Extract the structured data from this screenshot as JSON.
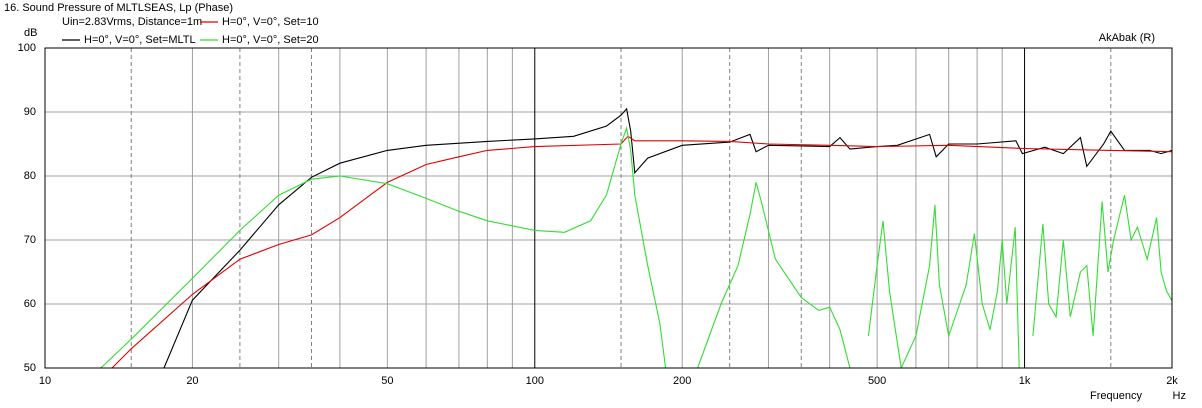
{
  "chart_data": {
    "type": "line",
    "title": "16. Sound Pressure of MLTLSEAS, Lp (Phase)",
    "subtitle": "Uin=2.83Vrms, Distance=1m",
    "ylabel": "dB",
    "xlabel": "Frequency",
    "xunit": "Hz",
    "annotation": "AkAbak (R)",
    "xscale": "log",
    "xlim": [
      10,
      2000
    ],
    "ylim": [
      50,
      100
    ],
    "xticks": [
      10,
      20,
      50,
      100,
      200,
      500,
      {
        "value": 1000,
        "label": "1k"
      },
      {
        "value": 2000,
        "label": "2k"
      }
    ],
    "yticks": [
      50,
      60,
      70,
      80,
      90,
      100
    ],
    "x_minor_gridlines": [
      30,
      40,
      60,
      70,
      80,
      90,
      300,
      400,
      600,
      700,
      800,
      900
    ],
    "x_dashed_gridlines": [
      15,
      25,
      35,
      150,
      250,
      350,
      1500
    ],
    "grid": true,
    "legend": "top-left",
    "series": [
      {
        "name": "H=0°, V=0°, Set=MLTL",
        "color": "#000000",
        "x": [
          10,
          17.5,
          20,
          25,
          30,
          35,
          40,
          50,
          60,
          80,
          100,
          120,
          140,
          150,
          154,
          157,
          160,
          170,
          200,
          250,
          275,
          283,
          300,
          350,
          400,
          420,
          440,
          500,
          550,
          640,
          660,
          700,
          800,
          960,
          990,
          1100,
          1200,
          1300,
          1340,
          1450,
          1500,
          1600,
          1700,
          1800,
          1900,
          2000
        ],
        "values": [
          50,
          50,
          60.6,
          68.4,
          75.5,
          79.8,
          82,
          84,
          84.8,
          85.4,
          85.8,
          86.2,
          87.8,
          89.5,
          90.5,
          87,
          80.5,
          82.8,
          84.8,
          85.3,
          86.5,
          83.8,
          84.8,
          84.7,
          84.6,
          86,
          84.2,
          84.6,
          84.8,
          86.5,
          83,
          85,
          85,
          85.5,
          83.5,
          84.5,
          83.5,
          86,
          81.5,
          85,
          87,
          84,
          84,
          84,
          83.5,
          84
        ]
      },
      {
        "name": "H=0°, V=0°, Set=10",
        "color": "#e00000",
        "x": [
          10,
          13.7,
          15,
          20,
          25,
          30,
          35,
          40,
          50,
          60,
          70,
          80,
          100,
          150,
          155,
          160,
          200,
          250,
          300,
          400,
          500,
          700,
          1000,
          1500,
          2000
        ],
        "values": [
          50,
          50,
          53,
          61.5,
          67,
          69.3,
          70.8,
          73.5,
          79,
          81.8,
          83,
          84,
          84.6,
          85,
          86.2,
          85.5,
          85.5,
          85.4,
          85,
          84.8,
          84.6,
          84.8,
          84.3,
          84,
          83.8
        ]
      },
      {
        "name": "H=0°, V=0°, Set=20",
        "color": "#33dd33",
        "x": [
          10,
          13,
          15,
          20,
          25,
          30,
          35,
          40,
          50,
          60,
          70,
          80,
          100,
          115,
          130,
          140,
          150,
          154,
          157,
          160,
          170,
          180,
          185,
          200,
          215,
          240,
          260,
          275,
          283,
          290,
          310,
          350,
          380,
          400,
          420,
          440,
          460,
          480,
          500,
          514,
          530,
          560,
          600,
          640,
          656,
          670,
          700,
          760,
          790,
          820,
          850,
          880,
          900,
          920,
          957,
          975,
          1000,
          1040,
          1090,
          1120,
          1160,
          1200,
          1240,
          1300,
          1340,
          1380,
          1440,
          1480,
          1520,
          1600,
          1650,
          1700,
          1780,
          1860,
          1900,
          1950,
          2000
        ],
        "values": [
          50,
          50,
          54.5,
          64,
          71.5,
          77,
          79.5,
          80,
          78.8,
          76.5,
          74.5,
          73,
          71.5,
          71.2,
          73,
          77,
          85,
          87.5,
          84,
          77,
          66,
          57,
          50,
          null,
          50,
          60,
          66,
          74,
          79,
          76,
          67,
          61,
          59,
          59.5,
          56,
          50,
          null,
          55,
          66,
          73,
          62,
          50,
          55,
          66,
          75.5,
          63,
          55,
          63,
          71,
          60,
          56,
          62,
          70,
          60,
          72,
          50,
          null,
          55,
          72.5,
          60,
          58,
          70,
          58,
          65,
          66,
          55,
          76,
          65,
          70,
          77,
          70,
          72,
          67,
          73.5,
          65,
          62,
          60.5
        ]
      }
    ]
  }
}
